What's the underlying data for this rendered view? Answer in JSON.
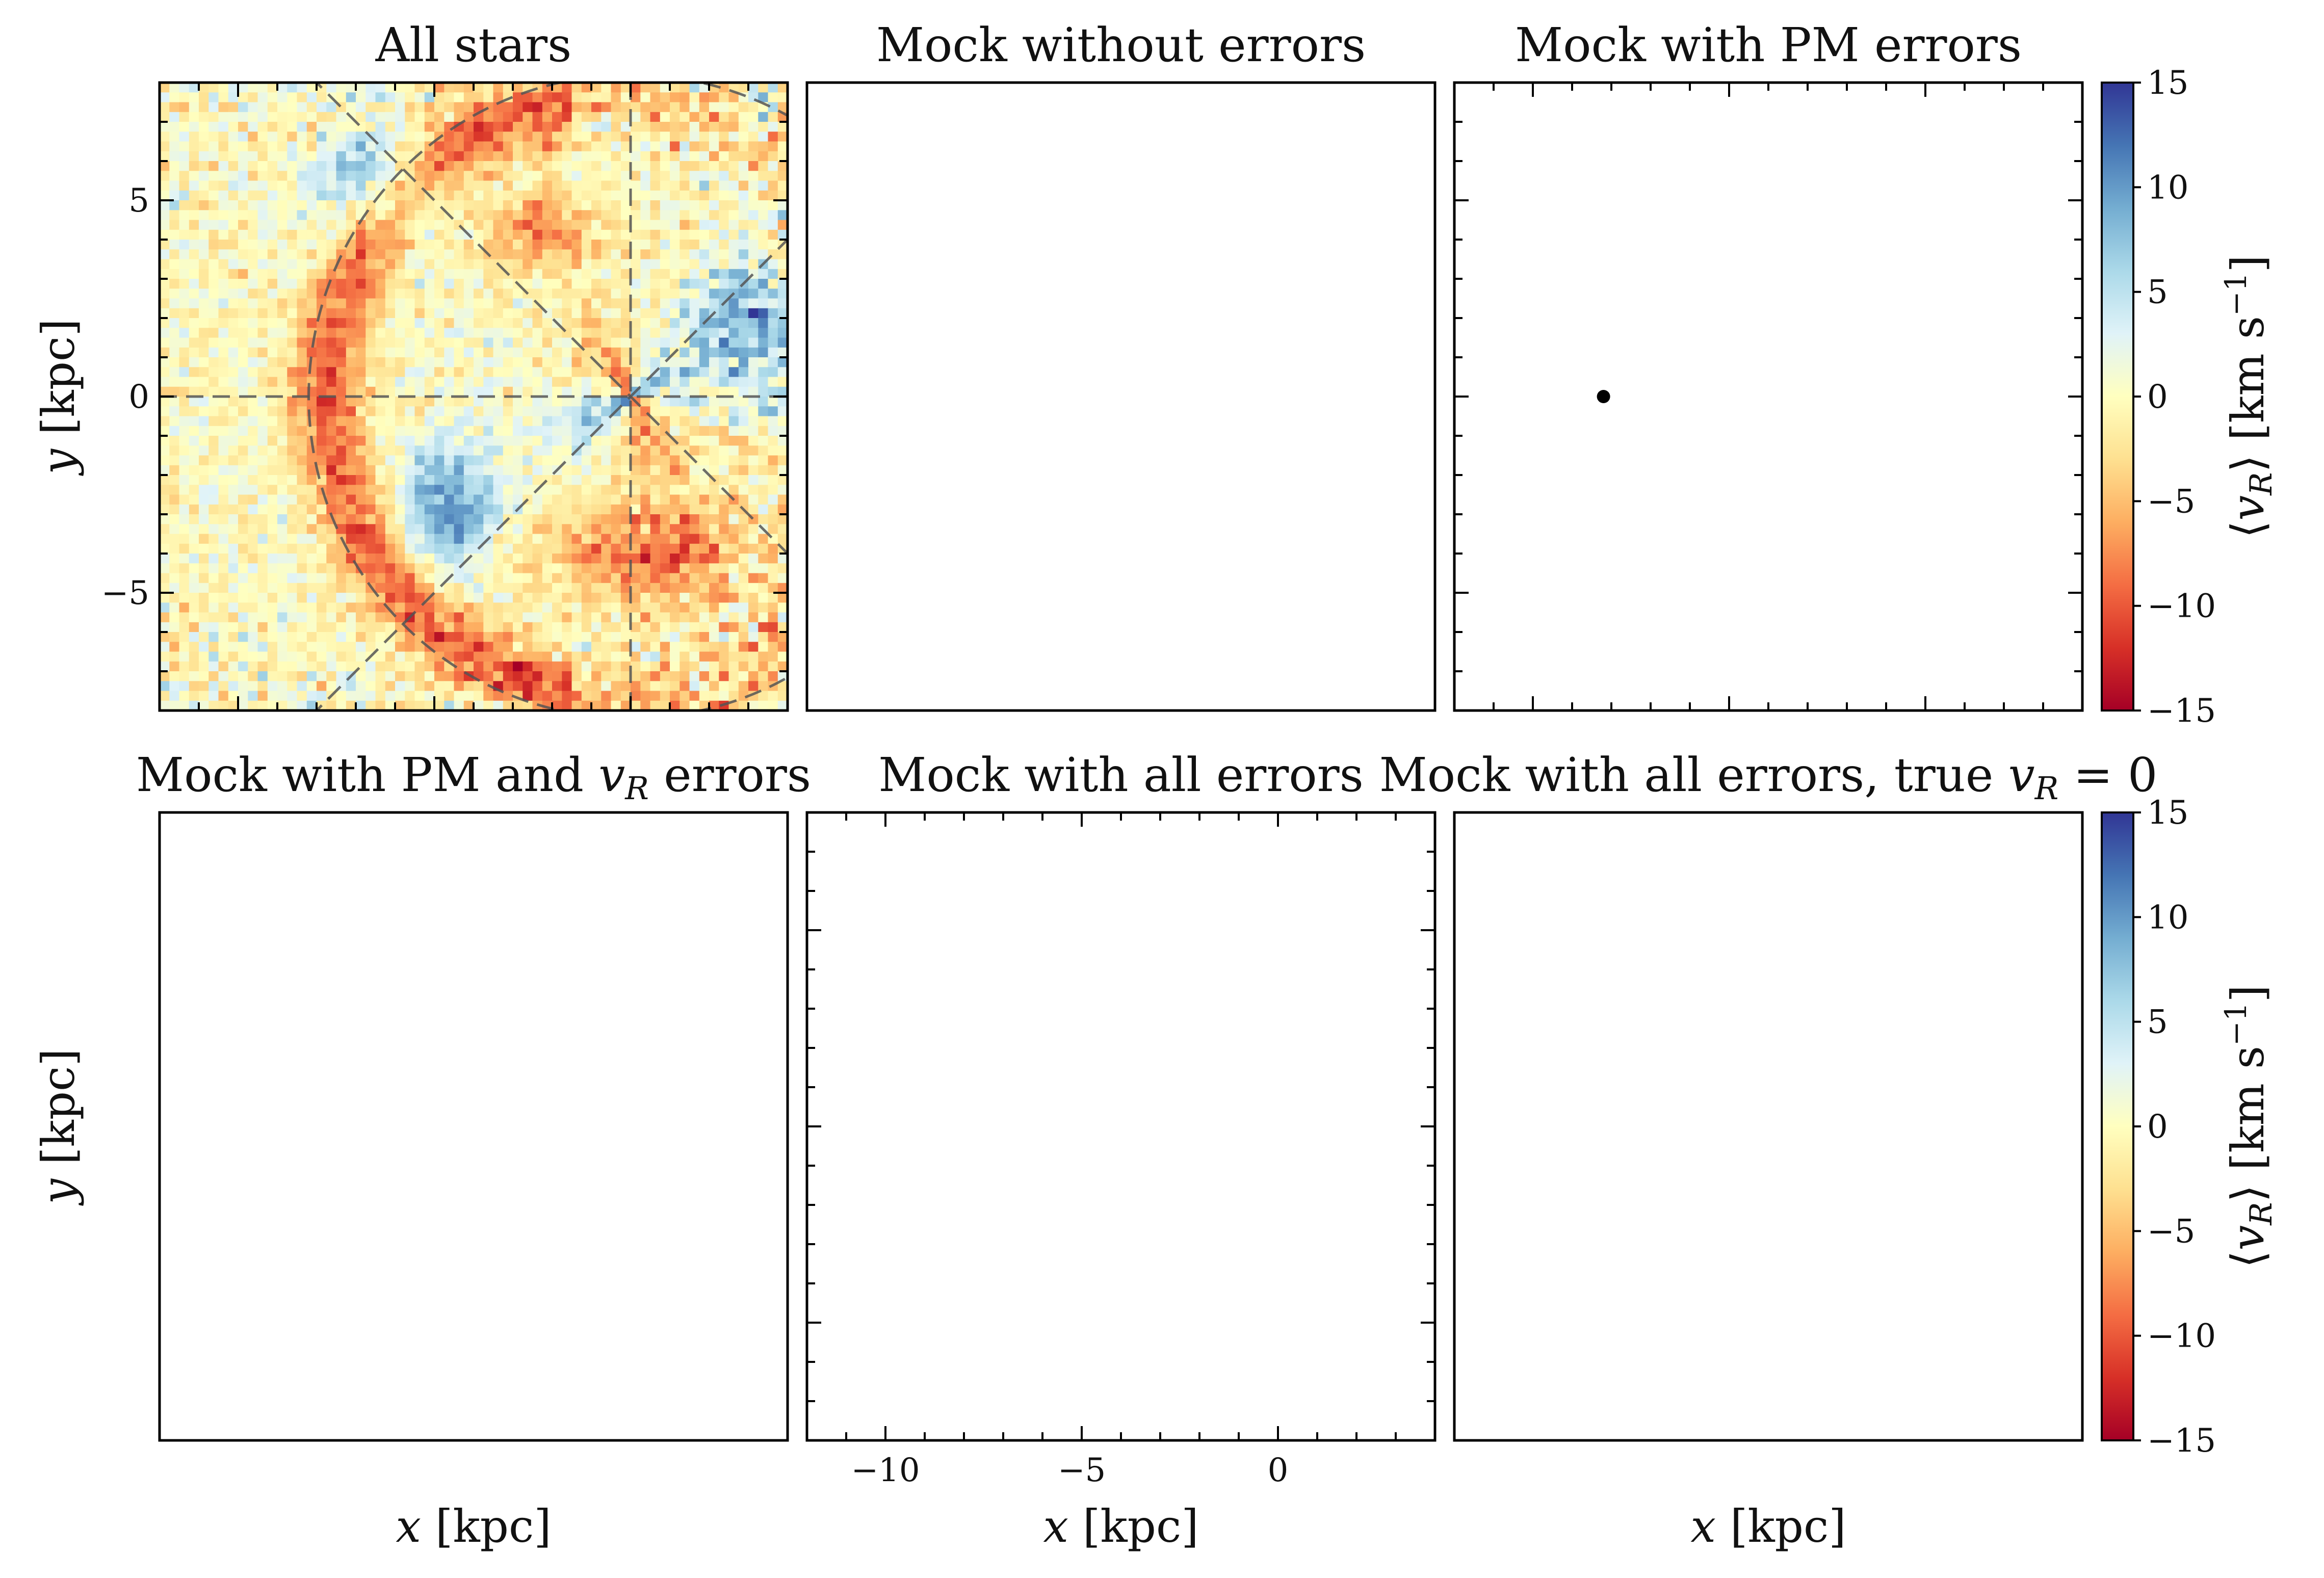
{
  "chart_data": {
    "type": "heatmap",
    "quantity": "⟨v_R⟩",
    "xlabel": {
      "var": "x",
      "unit": "[kpc]"
    },
    "ylabel": {
      "var": "y",
      "unit": "[kpc]"
    },
    "xlim": [
      -12,
      4
    ],
    "ylim": [
      -8,
      8
    ],
    "x_ticks": [
      -10,
      -5,
      0
    ],
    "y_ticks": [
      -5,
      0,
      5
    ],
    "grid": false,
    "colormap": "RdYlBu",
    "colorbar": {
      "label": {
        "var": "v",
        "sub": "R",
        "unit": "[km s",
        "exp": "−1",
        "close": "]"
      },
      "range": [
        -15,
        15
      ],
      "ticks": [
        15,
        10,
        5,
        0,
        -5,
        -10,
        -15
      ],
      "tick_labels": [
        "15",
        "10",
        "5",
        "0",
        "−5",
        "−10",
        "−15"
      ]
    },
    "colormap_stops": [
      "#a50026",
      "#d73027",
      "#f46d43",
      "#fdae61",
      "#fee090",
      "#ffffbf",
      "#e0f3f8",
      "#abd9e9",
      "#74add1",
      "#4575b4",
      "#313695"
    ],
    "sun_position": [
      -8.2,
      0
    ],
    "guide_circle_radius_kpc": 8.2,
    "panels": [
      {
        "title": "All stars",
        "bar": 0.9,
        "spiral": 0.85,
        "noise": 0.35,
        "edge_noise": 0.2,
        "empty_frac": 0.0,
        "sun": false
      },
      {
        "title": "Mock without errors",
        "bar": 0.6,
        "spiral": 0.75,
        "noise": 0.9,
        "edge_noise": 1.6,
        "empty_frac": 0.08,
        "sun": false
      },
      {
        "title": "Mock with PM errors",
        "bar": 0.6,
        "spiral": 0.75,
        "noise": 0.9,
        "edge_noise": 1.7,
        "empty_frac": 0.1,
        "sun": true
      },
      {
        "title": "Mock with PM and",
        "title_var": "v",
        "title_sub": "R",
        "title_tail": "errors",
        "bar": 0.4,
        "spiral": 0.7,
        "noise": 1.1,
        "edge_noise": 1.8,
        "empty_frac": 0.1,
        "sun": false
      },
      {
        "title": "Mock with all errors",
        "bar": 0.0,
        "quad": 1.0,
        "spiral": 0.75,
        "noise": 0.6,
        "edge_noise": 0.8,
        "empty_frac": 0.02,
        "sun": false
      },
      {
        "title": "Mock with all errors, true",
        "title_var": "v",
        "title_sub": "R",
        "title_tail": "= 0",
        "bar": 0.0,
        "quad": 1.0,
        "spiral": 0.0,
        "noise": 0.05,
        "edge_noise": 0.25,
        "empty_frac": 0.03,
        "sun": true
      }
    ]
  }
}
